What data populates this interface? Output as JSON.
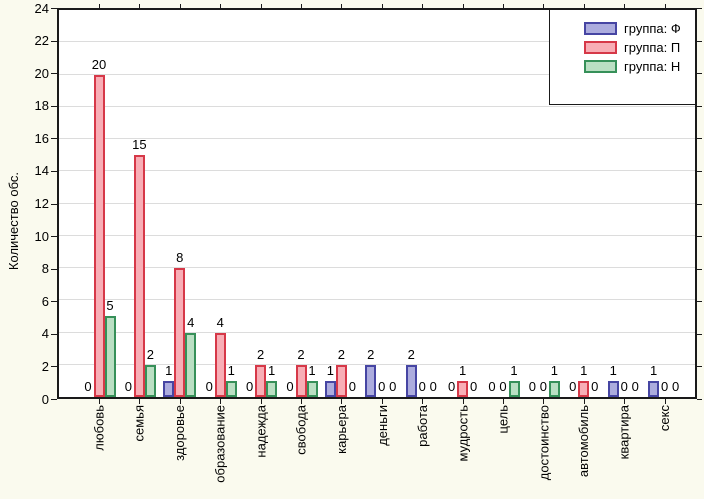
{
  "chart_data": {
    "type": "bar",
    "title": "",
    "ylabel": "Количество обс.",
    "xlabel": "",
    "ylim": [
      0,
      24
    ],
    "ytick_step": 2,
    "grid": true,
    "legend_position": "top-right-inside",
    "categories": [
      "любовь",
      "семья",
      "здоровье",
      "образование",
      "надежда",
      "свобода",
      "карьера",
      "деньги",
      "работа",
      "мудрость",
      "цель",
      "достоинство",
      "автомобиль",
      "квартира",
      "секс"
    ],
    "series": [
      {
        "name": "группа: Ф",
        "fill": "#ACACDE",
        "border": "#4645A3",
        "values": [
          0,
          0,
          1,
          0,
          0,
          0,
          1,
          2,
          2,
          0,
          0,
          0,
          0,
          1,
          1
        ]
      },
      {
        "name": "группа: П",
        "fill": "#F8AEB6",
        "border": "#D63848",
        "values": [
          20,
          15,
          8,
          4,
          2,
          2,
          2,
          0,
          0,
          1,
          0,
          0,
          1,
          0,
          0
        ]
      },
      {
        "name": "группа: Н",
        "fill": "#BADFC3",
        "border": "#369059",
        "values": [
          5,
          2,
          4,
          1,
          1,
          1,
          0,
          0,
          0,
          0,
          1,
          1,
          0,
          0,
          0
        ]
      }
    ],
    "colors": {
      "page_bg": "#FAFAEE",
      "plot_bg": "#FFFFFF",
      "grid": "#DCDCDC",
      "frame": "#1A1A1A",
      "text": "#000000"
    }
  }
}
